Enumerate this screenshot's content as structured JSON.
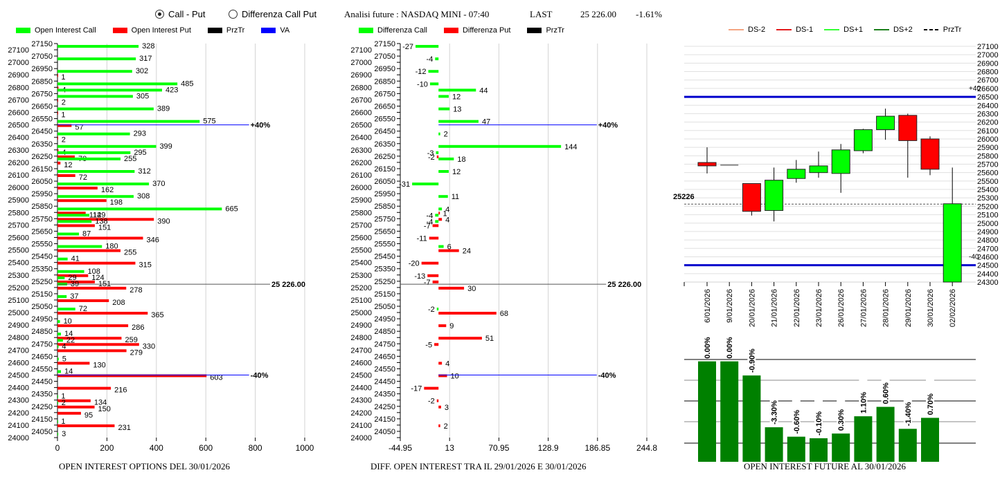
{
  "header": {
    "radio_options": [
      {
        "label": "Call - Put",
        "selected": true
      },
      {
        "label": "Differenza Call Put",
        "selected": false
      }
    ],
    "title": "Analisi future : NASDAQ MINI - 07:40",
    "last_label": "LAST",
    "last_value": "25 226.00",
    "change": "-1.61%"
  },
  "colors": {
    "call": "#00ff00",
    "put": "#ff0000",
    "przTr": "#000000",
    "va": "#0000ff",
    "ds_minus2": "#f4a582",
    "ds_minus1": "#e31a1c",
    "ds_plus1": "#33ff33",
    "ds_plus2": "#1a7f1a",
    "oi_future": "#008000"
  },
  "chart_data": [
    {
      "id": "oi_options",
      "type": "bar",
      "orientation": "horizontal",
      "title": "OPEN INTEREST OPTIONS DEL 30/01/2026",
      "legend": [
        "Open Interest Call",
        "Open Interest Put",
        "PrzTr",
        "VA"
      ],
      "legend_position": "top-left",
      "xlim": [
        0,
        1000
      ],
      "xticks": [
        "0",
        "200",
        "400",
        "600",
        "800",
        "1000"
      ],
      "ylim": [
        24000,
        27150
      ],
      "yticks_left": [
        "27100",
        "27000",
        "26900",
        "26800",
        "26700",
        "26600",
        "26500",
        "26400",
        "26300",
        "26200",
        "26100",
        "26000",
        "25900",
        "25800",
        "25700",
        "25600",
        "25500",
        "25400",
        "25300",
        "25200",
        "25100",
        "25000",
        "24900",
        "24800",
        "24700",
        "24600",
        "24500",
        "24400",
        "24300",
        "24200",
        "24100",
        "24000"
      ],
      "yticks_right": [
        "27150",
        "27050",
        "26950",
        "26850",
        "26750",
        "26650",
        "26550",
        "26450",
        "26350",
        "26250",
        "26150",
        "26050",
        "25950",
        "25850",
        "25750",
        "25650",
        "25550",
        "25450",
        "25350",
        "25250",
        "25150",
        "25050",
        "24950",
        "24850",
        "24750",
        "24650",
        "24550",
        "24450",
        "24350",
        "24250",
        "24150",
        "24050"
      ],
      "rows": [
        {
          "strike": 27100,
          "call": 328,
          "put": null
        },
        {
          "strike": 27000,
          "call": 317,
          "put": null
        },
        {
          "strike": 26900,
          "call": 302,
          "put": 1
        },
        {
          "strike": 26800,
          "call": 485,
          "put": 4
        },
        {
          "strike": 26750,
          "call": 423,
          "put": null
        },
        {
          "strike": 26700,
          "call": 305,
          "put": 2
        },
        {
          "strike": 26600,
          "call": 389,
          "put": 1
        },
        {
          "strike": 26500,
          "call": 575,
          "put": 57
        },
        {
          "strike": 26400,
          "call": 293,
          "put": 2
        },
        {
          "strike": 26300,
          "call": 399,
          "put": 4
        },
        {
          "strike": 26250,
          "call": 295,
          "put": 70
        },
        {
          "strike": 26200,
          "call": 255,
          "put": 12
        },
        {
          "strike": 26100,
          "call": 312,
          "put": 72
        },
        {
          "strike": 26000,
          "call": 370,
          "put": 162
        },
        {
          "strike": 25900,
          "call": 308,
          "put": 198
        },
        {
          "strike": 25800,
          "call": 665,
          "put": 114
        },
        {
          "strike": 25750,
          "call": 129,
          "put": 390
        },
        {
          "strike": 25700,
          "call": 138,
          "put": 151
        },
        {
          "strike": 25600,
          "call": 87,
          "put": 346
        },
        {
          "strike": 25500,
          "call": 180,
          "put": 255
        },
        {
          "strike": 25400,
          "call": 41,
          "put": 315
        },
        {
          "strike": 25300,
          "call": 108,
          "put": 124
        },
        {
          "strike": 25250,
          "call": 29,
          "put": 151
        },
        {
          "strike": 25200,
          "call": 39,
          "put": 278
        },
        {
          "strike": 25100,
          "call": 37,
          "put": 208
        },
        {
          "strike": 25000,
          "call": 72,
          "put": 365
        },
        {
          "strike": 24900,
          "call": 10,
          "put": 286
        },
        {
          "strike": 24800,
          "call": 14,
          "put": 259
        },
        {
          "strike": 24750,
          "call": 22,
          "put": 330
        },
        {
          "strike": 24700,
          "call": 4,
          "put": 279
        },
        {
          "strike": 24600,
          "call": 5,
          "put": 130
        },
        {
          "strike": 24500,
          "call": 14,
          "put": 603
        },
        {
          "strike": 24400,
          "call": null,
          "put": 216
        },
        {
          "strike": 24300,
          "call": 1,
          "put": 134
        },
        {
          "strike": 24250,
          "call": 2,
          "put": 150
        },
        {
          "strike": 24200,
          "call": null,
          "put": 95
        },
        {
          "strike": 24100,
          "call": 1,
          "put": 231
        },
        {
          "strike": 24000,
          "call": 3,
          "put": null
        }
      ],
      "lines": [
        {
          "name": "VA +40%",
          "level": 26500,
          "label": "+40%",
          "extent": 775,
          "color": "#0000ff"
        },
        {
          "name": "VA -40%",
          "level": 24500,
          "label": "-40%",
          "extent": 775,
          "color": "#0000ff"
        },
        {
          "name": "PrzTr",
          "level": 25226,
          "label": "25 226.00",
          "extent": 860,
          "color": "#555555"
        }
      ]
    },
    {
      "id": "oi_diff",
      "type": "bar",
      "orientation": "horizontal",
      "title": "DIFF. OPEN INTEREST TRA IL 29/01/2026 E 30/01/2026",
      "legend": [
        "Differenza Call",
        "Differenza Put",
        "PrzTr"
      ],
      "legend_position": "top-left",
      "xlim": [
        -44.95,
        244.8
      ],
      "xticks": [
        "-44.95",
        "13",
        "70.95",
        "128.9",
        "186.85",
        "244.8"
      ],
      "ylim": [
        24000,
        27150
      ],
      "rows": [
        {
          "strike": 27100,
          "call": -27,
          "put": null
        },
        {
          "strike": 27000,
          "call": -4,
          "put": null
        },
        {
          "strike": 26900,
          "call": -12,
          "put": null
        },
        {
          "strike": 26800,
          "call": -10,
          "put": null
        },
        {
          "strike": 26750,
          "call": 44,
          "put": null
        },
        {
          "strike": 26700,
          "call": 12,
          "put": null
        },
        {
          "strike": 26600,
          "call": 13,
          "put": null
        },
        {
          "strike": 26500,
          "call": 47,
          "put": null
        },
        {
          "strike": 26400,
          "call": 2,
          "put": null
        },
        {
          "strike": 26300,
          "call": 144,
          "put": null
        },
        {
          "strike": 26250,
          "call": -3,
          "put": -2
        },
        {
          "strike": 26200,
          "call": 18,
          "put": null
        },
        {
          "strike": 26100,
          "call": 12,
          "put": null
        },
        {
          "strike": 26000,
          "call": -31,
          "put": null
        },
        {
          "strike": 25900,
          "call": 11,
          "put": null
        },
        {
          "strike": 25800,
          "call": 4,
          "put": 1
        },
        {
          "strike": 25750,
          "call": -4,
          "put": 4
        },
        {
          "strike": 25700,
          "call": -4,
          "put": -7
        },
        {
          "strike": 25600,
          "call": null,
          "put": -11
        },
        {
          "strike": 25500,
          "call": 6,
          "put": 24
        },
        {
          "strike": 25400,
          "call": null,
          "put": -20
        },
        {
          "strike": 25300,
          "call": null,
          "put": -13
        },
        {
          "strike": 25250,
          "call": null,
          "put": -7
        },
        {
          "strike": 25200,
          "call": null,
          "put": 30
        },
        {
          "strike": 25000,
          "call": -2,
          "put": 68
        },
        {
          "strike": 24900,
          "call": null,
          "put": 9
        },
        {
          "strike": 24800,
          "call": null,
          "put": 51
        },
        {
          "strike": 24750,
          "call": null,
          "put": -5
        },
        {
          "strike": 24600,
          "call": null,
          "put": 4
        },
        {
          "strike": 24500,
          "call": null,
          "put": 10
        },
        {
          "strike": 24400,
          "call": null,
          "put": -17
        },
        {
          "strike": 24300,
          "call": null,
          "put": -2
        },
        {
          "strike": 24250,
          "call": null,
          "put": 3
        },
        {
          "strike": 24100,
          "call": null,
          "put": 2
        }
      ],
      "lines": [
        {
          "name": "VA +40%",
          "level": 26500,
          "label": "+40%",
          "extent": 186,
          "color": "#0000ff"
        },
        {
          "name": "VA -40%",
          "level": 24500,
          "label": "-40%",
          "extent": 186,
          "color": "#0000ff"
        },
        {
          "name": "PrzTr",
          "level": 25226,
          "label": "25 226.00",
          "extent": 197,
          "color": "#555555"
        }
      ]
    },
    {
      "id": "future_candles",
      "type": "candlestick",
      "title": "",
      "legend": [
        "DS-2",
        "DS-1",
        "DS+1",
        "DS+2",
        "PrzTr"
      ],
      "legend_position": "top",
      "ylim": [
        24300,
        27150
      ],
      "yticks": [
        "27100",
        "27000",
        "26900",
        "26800",
        "26700",
        "26600",
        "26500",
        "26400",
        "26300",
        "26200",
        "26100",
        "26000",
        "25900",
        "25800",
        "25700",
        "25600",
        "25500",
        "25400",
        "25300",
        "25200",
        "25100",
        "25000",
        "24900",
        "24800",
        "24700",
        "24600",
        "24500",
        "24400",
        "24300"
      ],
      "x": [
        "16/01/2026",
        "19/01/2026",
        "20/01/2026",
        "21/01/2026",
        "22/01/2026",
        "23/01/2026",
        "26/01/2026",
        "27/01/2026",
        "28/01/2026",
        "29/01/2026",
        "30/01/2026",
        "02/02/2026"
      ],
      "candles": [
        {
          "date": "16/01/2026",
          "open": 25720,
          "close": 25680,
          "high": 25900,
          "low": 25590
        },
        {
          "date": "19/01/2026",
          "open": 25690,
          "close": 25690,
          "high": 25690,
          "low": 25690
        },
        {
          "date": "20/01/2026",
          "open": 25470,
          "close": 25140,
          "high": 25470,
          "low": 25090
        },
        {
          "date": "21/01/2026",
          "open": 25150,
          "close": 25510,
          "high": 25660,
          "low": 25020
        },
        {
          "date": "22/01/2026",
          "open": 25530,
          "close": 25640,
          "high": 25750,
          "low": 25480
        },
        {
          "date": "23/01/2026",
          "open": 25600,
          "close": 25680,
          "high": 25850,
          "low": 25540
        },
        {
          "date": "26/01/2026",
          "open": 25590,
          "close": 25870,
          "high": 25940,
          "low": 25360
        },
        {
          "date": "27/01/2026",
          "open": 25860,
          "close": 26110,
          "high": 26120,
          "low": 25830
        },
        {
          "date": "28/01/2026",
          "open": 26110,
          "close": 26270,
          "high": 26360,
          "low": 25990
        },
        {
          "date": "29/01/2026",
          "open": 26280,
          "close": 25980,
          "high": 26300,
          "low": 25540
        },
        {
          "date": "30/01/2026",
          "open": 26000,
          "close": 25640,
          "high": 26030,
          "low": 25570
        },
        {
          "date": "02/02/2026",
          "open": 24300,
          "close": 25230,
          "high": 25660,
          "low": 24300
        }
      ],
      "lines": [
        {
          "name": "VA +40",
          "level": 26500,
          "label": "+40",
          "color": "#0000cc"
        },
        {
          "name": "VA -40",
          "level": 24500,
          "label": "-40",
          "color": "#0000cc"
        },
        {
          "name": "PrzTr",
          "level": 25226,
          "label": "25226",
          "color": "#555555",
          "dashed": true
        }
      ]
    },
    {
      "id": "oi_future",
      "type": "bar",
      "title": "OPEN INTEREST FUTURE AL 30/01/2026",
      "categories": [
        "16/01/2026",
        "19/01/2026",
        "20/01/2026",
        "21/01/2026",
        "22/01/2026",
        "23/01/2026",
        "26/01/2026",
        "27/01/2026",
        "28/01/2026",
        "29/01/2026",
        "30/01/2026"
      ],
      "labels": [
        "0.00%",
        "0.00%",
        "-0.90%",
        "-3.30%",
        "-0.60%",
        "-0.10%",
        "0.30%",
        "1.10%",
        "0.60%",
        "-1.40%",
        "0.70%"
      ],
      "values": [
        100,
        100,
        99.1,
        95.8,
        95.2,
        95.1,
        95.4,
        96.5,
        97.1,
        95.7,
        96.4
      ],
      "ylim": [
        93.6,
        101
      ],
      "grid": true
    }
  ],
  "captions": {
    "left": "OPEN INTEREST OPTIONS DEL 30/01/2026",
    "middle": "DIFF. OPEN INTEREST TRA IL 29/01/2026 E 30/01/2026",
    "right": "OPEN INTEREST FUTURE AL 30/01/2026"
  }
}
